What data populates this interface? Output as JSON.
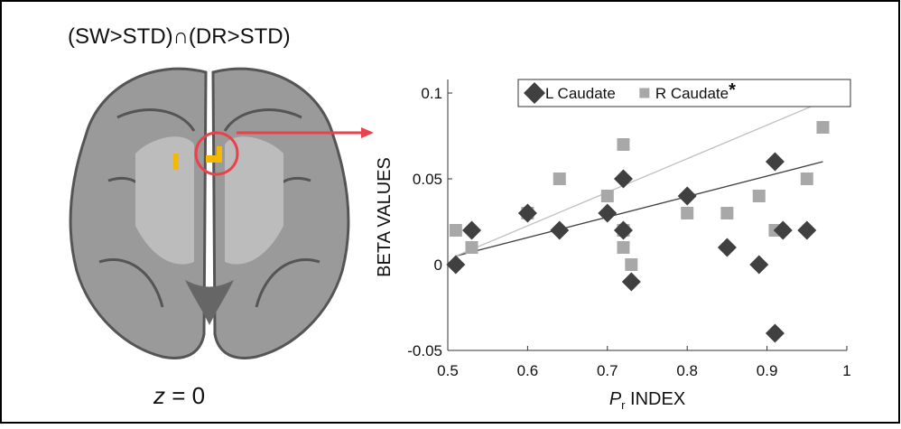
{
  "figure_title": "(SW>STD)∩(DR>STD)",
  "slice_label": {
    "variable": "z",
    "text": " = 0"
  },
  "chart_data": {
    "type": "scatter",
    "ylabel": "BETA VALUES",
    "xlabel": {
      "symbol": "P",
      "subscript": "r",
      "text": " INDEX"
    },
    "xlim": [
      0.5,
      1
    ],
    "xticks": [
      0.5,
      0.6,
      0.7,
      0.8,
      0.9,
      1
    ],
    "ylim": [
      -0.05,
      0.1
    ],
    "yticks": [
      -0.05,
      0,
      0.05,
      0.1
    ],
    "legend_position": "top",
    "series": [
      {
        "name": "L Caudate",
        "color": "#404040",
        "marker": "diamond",
        "x": [
          0.51,
          0.53,
          0.6,
          0.64,
          0.7,
          0.72,
          0.72,
          0.73,
          0.8,
          0.85,
          0.89,
          0.91,
          0.91,
          0.92,
          0.95,
          0.97
        ],
        "values": [
          0,
          0.02,
          0.03,
          0.02,
          0.03,
          0.05,
          0.02,
          -0.01,
          0.04,
          0.01,
          0,
          0.06,
          -0.04,
          0.02,
          0.02,
          0.1
        ],
        "trend_x": [
          0.51,
          0.97
        ],
        "trend_y": [
          0.005,
          0.06
        ],
        "trend_color": "#404040"
      },
      {
        "name": "R Caudate",
        "significance": "*",
        "color": "#a8a8a8",
        "marker": "square",
        "x": [
          0.51,
          0.53,
          0.6,
          0.64,
          0.7,
          0.72,
          0.72,
          0.72,
          0.73,
          0.8,
          0.85,
          0.89,
          0.91,
          0.92,
          0.91,
          0.95,
          0.97
        ],
        "values": [
          0.02,
          0.01,
          0.03,
          0.05,
          0.04,
          0.07,
          0.02,
          0.01,
          0,
          0.03,
          0.03,
          0.04,
          0.1,
          0.1,
          0.02,
          0.05,
          0.08
        ],
        "trend_x": [
          0.51,
          0.97
        ],
        "trend_y": [
          0.005,
          0.095
        ],
        "trend_color": "#c0c0c0"
      }
    ]
  }
}
